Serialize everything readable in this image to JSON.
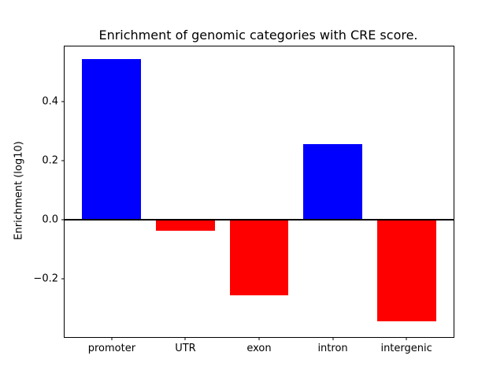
{
  "chart_data": {
    "type": "bar",
    "title": "Enrichment of genomic categories with CRE score.",
    "xlabel": "",
    "ylabel": "Enrichment (log10)",
    "categories": [
      "promoter",
      "UTR",
      "exon",
      "intron",
      "intergenic"
    ],
    "values": [
      0.545,
      -0.037,
      -0.255,
      0.256,
      -0.343
    ],
    "bar_colors": {
      "positive": "#0000ff",
      "negative": "#ff0000"
    },
    "yticks": [
      {
        "value": -0.2,
        "label": "−0.2"
      },
      {
        "value": 0.0,
        "label": "0.0"
      },
      {
        "value": 0.2,
        "label": "0.2"
      },
      {
        "value": 0.4,
        "label": "0.4"
      }
    ],
    "ylim": [
      -0.397,
      0.587
    ],
    "xlim": [
      -0.64,
      4.64
    ],
    "bar_width": 0.8,
    "zero_line": true,
    "zero_line_color": "#000000",
    "grid": false,
    "legend": null,
    "background_color": "#ffffff"
  }
}
